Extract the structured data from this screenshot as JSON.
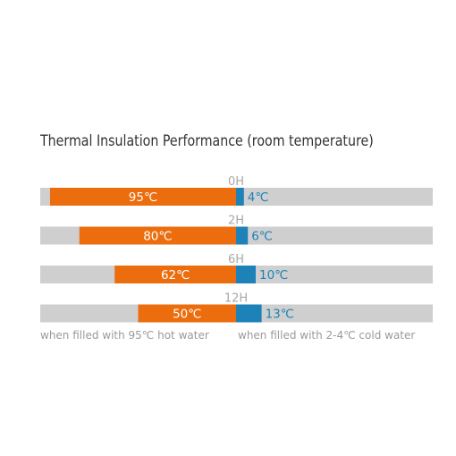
{
  "chart_data": {
    "type": "bar",
    "title": "Thermal Insulation Performance (room temperature)",
    "categories": [
      "0H",
      "2H",
      "6H",
      "12H"
    ],
    "series": [
      {
        "name": "hot",
        "values": [
          95,
          80,
          62,
          50
        ],
        "labels": [
          "95℃",
          "80℃",
          "62℃",
          "50℃"
        ],
        "color": "#eb6d0d"
      },
      {
        "name": "cold",
        "values": [
          4,
          6,
          10,
          13
        ],
        "labels": [
          "4℃",
          "6℃",
          "10℃",
          "13℃"
        ],
        "color": "#1d82b8"
      }
    ],
    "track_color": "#cfcfcf",
    "hot_max": 100,
    "cold_max": 100,
    "notes": {
      "hot": "when filled with 95℃ hot water",
      "cold": "when filled with 2-4℃ cold water"
    }
  }
}
